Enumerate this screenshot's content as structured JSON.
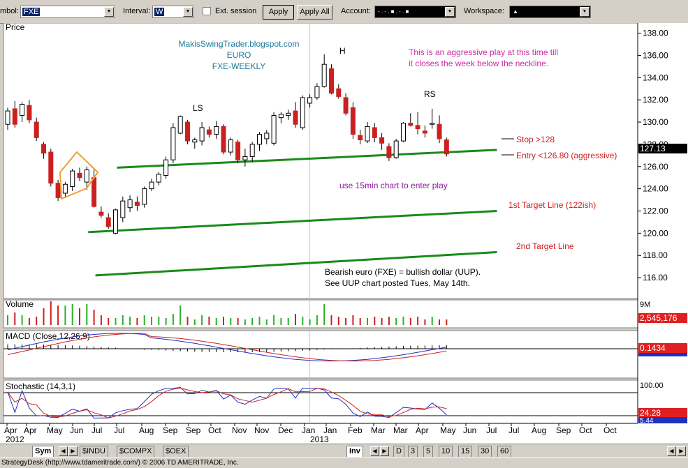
{
  "toolbar": {
    "symbol_label": "mbol:",
    "symbol_value": "FXE",
    "interval_label": "Interval:",
    "interval_value": "W",
    "ext_session_label": "Ext. session",
    "apply_label": "Apply",
    "apply_all_label": "Apply All",
    "account_label": "Account:",
    "account_value": "- . - . ■ . - . ■",
    "workspace_label": "Workspace:",
    "workspace_value": "▲"
  },
  "chart_data": [
    {
      "type": "candlestick",
      "panel": "price",
      "title": "Price",
      "ylim": [
        114.5,
        138.6
      ],
      "y_ticks": [
        "138.00",
        "136.00",
        "134.00",
        "132.00",
        "130.00",
        "128.00",
        "126.00",
        "124.00",
        "122.00",
        "120.00",
        "118.00",
        "116.00"
      ],
      "y_tick_values": [
        138,
        136,
        134,
        132,
        130,
        128,
        126,
        124,
        122,
        120,
        118,
        116
      ],
      "last_price_label": "127.13",
      "last_price": 127.13,
      "candles": [
        {
          "o": 129.8,
          "h": 131.3,
          "l": 129.3,
          "c": 131.0
        },
        {
          "o": 131.2,
          "h": 131.9,
          "l": 129.5,
          "c": 129.8
        },
        {
          "o": 130.6,
          "h": 131.8,
          "l": 130.0,
          "c": 131.6
        },
        {
          "o": 131.5,
          "h": 132.0,
          "l": 129.9,
          "c": 130.2
        },
        {
          "o": 130.0,
          "h": 130.4,
          "l": 128.3,
          "c": 128.6
        },
        {
          "o": 128.0,
          "h": 128.2,
          "l": 126.7,
          "c": 127.2
        },
        {
          "o": 127.3,
          "h": 127.6,
          "l": 124.2,
          "c": 124.5
        },
        {
          "o": 124.5,
          "h": 124.8,
          "l": 122.9,
          "c": 123.2
        },
        {
          "o": 123.6,
          "h": 124.6,
          "l": 123.2,
          "c": 124.4
        },
        {
          "o": 124.2,
          "h": 125.8,
          "l": 123.8,
          "c": 125.6
        },
        {
          "o": 125.4,
          "h": 125.9,
          "l": 124.7,
          "c": 125.0
        },
        {
          "o": 124.6,
          "h": 126.0,
          "l": 123.9,
          "c": 125.7
        },
        {
          "o": 125.0,
          "h": 125.8,
          "l": 122.3,
          "c": 122.4
        },
        {
          "o": 121.9,
          "h": 122.4,
          "l": 121.4,
          "c": 121.6
        },
        {
          "o": 121.4,
          "h": 121.8,
          "l": 120.4,
          "c": 120.6
        },
        {
          "o": 120.0,
          "h": 122.2,
          "l": 119.9,
          "c": 122.1
        },
        {
          "o": 121.4,
          "h": 123.3,
          "l": 121.0,
          "c": 122.9
        },
        {
          "o": 122.3,
          "h": 123.4,
          "l": 121.9,
          "c": 123.0
        },
        {
          "o": 122.8,
          "h": 123.3,
          "l": 122.0,
          "c": 122.5
        },
        {
          "o": 122.6,
          "h": 124.2,
          "l": 122.3,
          "c": 124.0
        },
        {
          "o": 124.0,
          "h": 124.9,
          "l": 123.8,
          "c": 124.6
        },
        {
          "o": 124.6,
          "h": 125.5,
          "l": 124.3,
          "c": 125.3
        },
        {
          "o": 125.2,
          "h": 126.9,
          "l": 124.9,
          "c": 126.6
        },
        {
          "o": 126.6,
          "h": 129.9,
          "l": 126.3,
          "c": 129.5
        },
        {
          "o": 129.0,
          "h": 130.6,
          "l": 128.9,
          "c": 130.5
        },
        {
          "o": 130.0,
          "h": 130.2,
          "l": 128.0,
          "c": 128.3
        },
        {
          "o": 128.2,
          "h": 128.6,
          "l": 127.6,
          "c": 128.4
        },
        {
          "o": 128.3,
          "h": 130.0,
          "l": 127.9,
          "c": 129.5
        },
        {
          "o": 129.3,
          "h": 129.6,
          "l": 128.6,
          "c": 128.9
        },
        {
          "o": 128.9,
          "h": 130.1,
          "l": 128.5,
          "c": 129.6
        },
        {
          "o": 129.6,
          "h": 129.8,
          "l": 127.1,
          "c": 127.3
        },
        {
          "o": 127.3,
          "h": 128.6,
          "l": 127.0,
          "c": 128.4
        },
        {
          "o": 128.2,
          "h": 128.4,
          "l": 126.3,
          "c": 126.6
        },
        {
          "o": 126.6,
          "h": 127.6,
          "l": 126.0,
          "c": 126.9
        },
        {
          "o": 126.9,
          "h": 128.2,
          "l": 126.4,
          "c": 128.0
        },
        {
          "o": 128.0,
          "h": 129.1,
          "l": 127.4,
          "c": 128.9
        },
        {
          "o": 128.5,
          "h": 129.3,
          "l": 128.0,
          "c": 129.0
        },
        {
          "o": 128.1,
          "h": 130.9,
          "l": 127.9,
          "c": 130.6
        },
        {
          "o": 130.4,
          "h": 130.9,
          "l": 129.9,
          "c": 130.7
        },
        {
          "o": 130.6,
          "h": 131.1,
          "l": 130.2,
          "c": 130.8
        },
        {
          "o": 131.0,
          "h": 131.8,
          "l": 129.5,
          "c": 129.8
        },
        {
          "o": 129.5,
          "h": 132.4,
          "l": 129.3,
          "c": 132.2
        },
        {
          "o": 131.7,
          "h": 132.5,
          "l": 131.3,
          "c": 132.2
        },
        {
          "o": 132.2,
          "h": 133.5,
          "l": 132.0,
          "c": 133.2
        },
        {
          "o": 133.2,
          "h": 136.1,
          "l": 133.1,
          "c": 135.2
        },
        {
          "o": 134.8,
          "h": 135.2,
          "l": 132.5,
          "c": 132.6
        },
        {
          "o": 133.0,
          "h": 133.4,
          "l": 132.1,
          "c": 132.3
        },
        {
          "o": 132.2,
          "h": 132.6,
          "l": 130.6,
          "c": 130.8
        },
        {
          "o": 131.3,
          "h": 131.8,
          "l": 128.5,
          "c": 128.9
        },
        {
          "o": 128.8,
          "h": 129.3,
          "l": 128.0,
          "c": 128.4
        },
        {
          "o": 128.3,
          "h": 130.0,
          "l": 128.1,
          "c": 129.6
        },
        {
          "o": 129.5,
          "h": 129.9,
          "l": 128.2,
          "c": 128.6
        },
        {
          "o": 128.6,
          "h": 129.0,
          "l": 127.5,
          "c": 128.1
        },
        {
          "o": 127.8,
          "h": 128.1,
          "l": 126.5,
          "c": 126.8
        },
        {
          "o": 126.8,
          "h": 128.5,
          "l": 126.7,
          "c": 128.3
        },
        {
          "o": 128.3,
          "h": 130.0,
          "l": 128.2,
          "c": 129.9
        },
        {
          "o": 129.9,
          "h": 130.8,
          "l": 129.6,
          "c": 129.7
        },
        {
          "o": 129.7,
          "h": 130.9,
          "l": 128.9,
          "c": 129.4
        },
        {
          "o": 129.2,
          "h": 129.7,
          "l": 128.6,
          "c": 129.0
        },
        {
          "o": 129.8,
          "h": 131.2,
          "l": 129.4,
          "c": 129.9
        },
        {
          "o": 129.8,
          "h": 130.6,
          "l": 128.1,
          "c": 128.5
        },
        {
          "o": 128.4,
          "h": 128.6,
          "l": 126.9,
          "c": 127.13
        }
      ],
      "x_ticks": [
        "Apr",
        "Apr",
        "May",
        "Jun",
        "Jul",
        "Jul",
        "Aug",
        "Sep",
        "Sep",
        "Oct",
        "Nov",
        "Nov",
        "Dec",
        "Jan",
        "Jan",
        "Feb",
        "Mar",
        "Mar",
        "Apr",
        "May",
        "Jun",
        "Jul",
        "Jul",
        "Aug",
        "Sep",
        "Oct",
        "Oct"
      ],
      "x_years": [
        "2012",
        "2013"
      ],
      "annotations": {
        "watermark_lines": [
          "MakisSwingTrader.blogspot.com",
          "EURO",
          "FXE-WEEKLY"
        ],
        "ls": "LS",
        "h": "H",
        "rs": "RS",
        "aggressive_note": [
          "This is an aggressive play at this time till",
          "it closes the week below the neckline."
        ],
        "stop": "Stop >128",
        "entry": "Entry <126.80 (aggressive)",
        "enter_note": "use 15min chart to enter play",
        "target1": "1st Target Line (122ish)",
        "target2": "2nd Target Line",
        "bearish_note": [
          "Bearish euro (FXE) = bullish dollar (UUP).",
          "See UUP chart posted Tues, May 14th."
        ]
      },
      "trend_lines": [
        {
          "name": "neckline",
          "from": [
            15,
            125.9
          ],
          "to": [
            68,
            127.5
          ]
        },
        {
          "name": "target1",
          "from": [
            11,
            120.1
          ],
          "to": [
            68,
            122.0
          ]
        },
        {
          "name": "target2",
          "from": [
            12,
            116.2
          ],
          "to": [
            68,
            118.3
          ]
        }
      ]
    },
    {
      "type": "bar",
      "panel": "volume",
      "title": "Volume",
      "axis_label": "9M",
      "last_value_label": "2,545,176"
    },
    {
      "type": "line",
      "panel": "macd",
      "title": "MACD (Close,12,26,9)",
      "last_value_label": "0.1434"
    },
    {
      "type": "line",
      "panel": "stochastic",
      "title": "Stochastic (14,3,1)",
      "axis_label": "100.00",
      "last_value_label": "24.28",
      "second_value_label": "5.44"
    }
  ],
  "bottombar": {
    "tabs_left": [
      "Sym"
    ],
    "symbol_tabs": [
      "$INDU",
      "$COMPX",
      "$OEX"
    ],
    "inv_label": "Inv",
    "interval_tabs": [
      "D",
      "3",
      "5",
      "10",
      "15",
      "30",
      "60"
    ]
  },
  "status": "StrategyDesk (http://www.tdameritrade.com/) © 2006 TD AMERITRADE, Inc."
}
